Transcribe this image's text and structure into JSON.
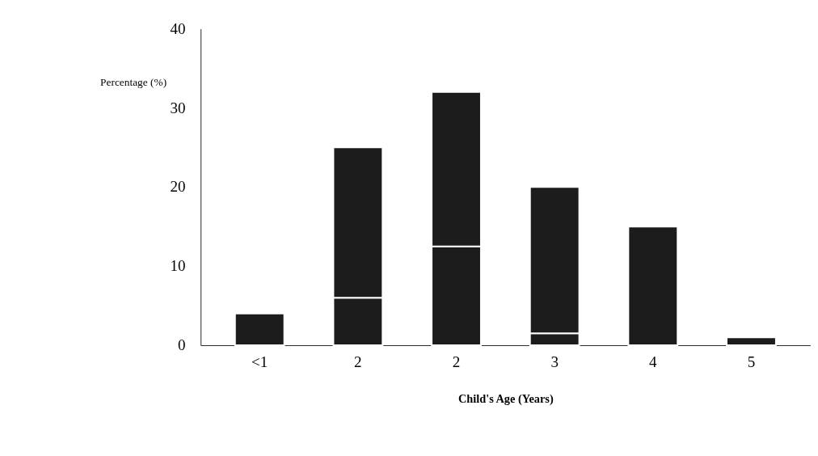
{
  "chart_data": {
    "type": "bar",
    "stacked": true,
    "ylabel": "Percentage (%)",
    "xlabel": "Child's Age (Years)",
    "categories": [
      "<1",
      "2",
      "2",
      "3",
      "4",
      "5"
    ],
    "series": [
      {
        "color": "#1c1c1c",
        "values": [
          4,
          6,
          12.5,
          1.5,
          15,
          1
        ]
      },
      {
        "color": "#1c1c1c",
        "values": [
          null,
          19,
          19.5,
          18.5,
          null,
          null
        ]
      }
    ],
    "ylim": [
      0,
      40
    ],
    "yticks": [
      0,
      10,
      20,
      30,
      40
    ],
    "grid": false
  }
}
